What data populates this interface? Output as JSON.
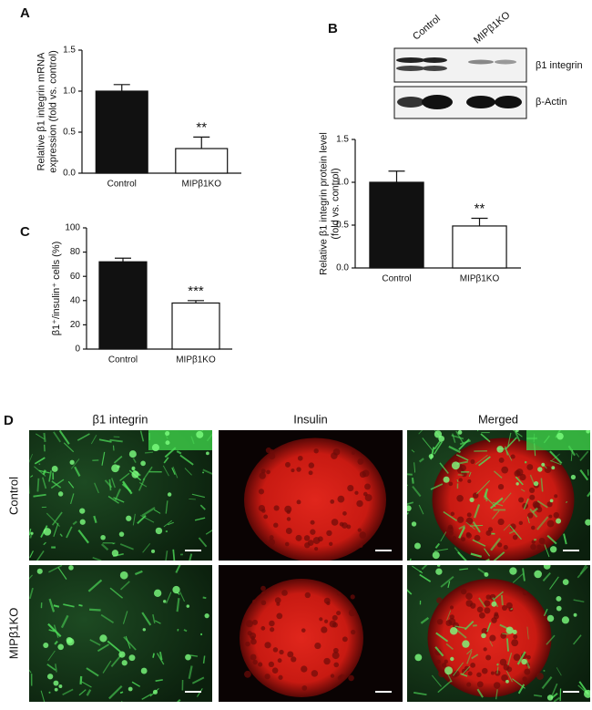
{
  "chart_data": [
    {
      "type": "bar",
      "panel": "A",
      "ylabel": [
        "Relative β1 integrin mRNA",
        "expression (fold vs. control)"
      ],
      "categories": [
        "Control",
        "MIPβ1KO"
      ],
      "values": [
        1.0,
        0.3
      ],
      "errors": [
        0.08,
        0.14
      ],
      "significance": [
        null,
        "**"
      ],
      "colors": [
        "#111111",
        "#ffffff"
      ],
      "ylim": [
        0,
        1.5
      ],
      "yticks": [
        {
          "value": 0,
          "label": "0.0"
        },
        0.5,
        {
          "value": 1,
          "label": "1.0"
        },
        1.5
      ]
    },
    {
      "type": "bar",
      "ylabel": [
        "Relative β1 integrin protein level",
        "(fold vs. control)"
      ],
      "categories": [
        "Control",
        "MIPβ1KO"
      ],
      "values": [
        1.0,
        0.49
      ],
      "errors": [
        0.13,
        0.09
      ],
      "significance": [
        null,
        "**"
      ],
      "colors": [
        "#111111",
        "#ffffff"
      ],
      "ylim": [
        0,
        1.5
      ],
      "yticks": [
        {
          "value": 0,
          "label": "0.0"
        },
        0.5,
        {
          "value": 1,
          "label": "1.0"
        },
        1.5
      ]
    },
    {
      "type": "bar",
      "panel": "C",
      "ylabel": [
        "β1⁺/insulin⁺ cells (%)"
      ],
      "categories": [
        "Control",
        "MIPβ1KO"
      ],
      "values": [
        72,
        38
      ],
      "errors": [
        3,
        2
      ],
      "significance": [
        null,
        "***"
      ],
      "colors": [
        "#111111",
        "#ffffff"
      ],
      "ylim": [
        0,
        100
      ],
      "yticks": [
        0,
        20,
        40,
        60,
        80,
        100
      ]
    }
  ],
  "blot": {
    "panel": "B",
    "lanes": [
      "Control",
      "MIPβ1KO"
    ],
    "bands": [
      "β1 integrin",
      "β-Actin"
    ]
  },
  "micrographs": {
    "panel": "D",
    "columns": [
      "β1 integrin",
      "Insulin",
      "Merged"
    ],
    "rows": [
      "Control",
      "MIPβ1KO"
    ]
  }
}
